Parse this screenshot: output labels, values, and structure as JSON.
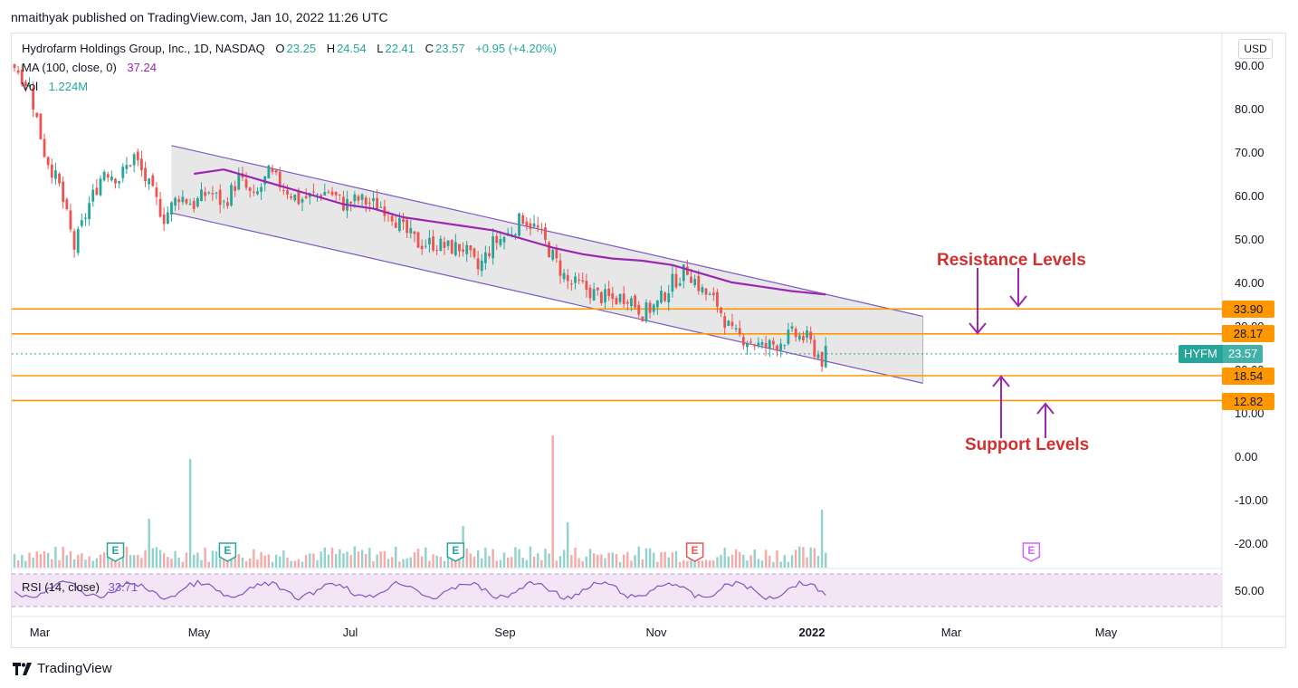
{
  "publisher": "nmaithyak published on TradingView.com, Jan 10, 2022 11:26 UTC",
  "legend": {
    "name": "Hydrofarm Holdings Group, Inc., 1D, NASDAQ",
    "o_label": "O",
    "o": "23.25",
    "h_label": "H",
    "h": "24.54",
    "l_label": "L",
    "l": "22.41",
    "c_label": "C",
    "c": "23.57",
    "change": "+0.95 (+4.20%)",
    "ma_label": "MA (100, close, 0)",
    "ma_value": "37.24",
    "vol_label": "Vol",
    "vol_value": "1.224M"
  },
  "currency": "USD",
  "symbol_tag": {
    "symbol": "HYFM",
    "price": "23.57"
  },
  "price_tags": [
    "33.90",
    "28.17",
    "18.54",
    "12.82"
  ],
  "annotations": {
    "resistance": "Resistance Levels",
    "support": "Support Levels"
  },
  "rsi": {
    "label": "RSI (14, close)",
    "value": "33.71",
    "axis_label": "50.00"
  },
  "earnings_marker": "E",
  "footer": "TradingView",
  "colors": {
    "up": "#26a69a",
    "down": "#ef5350",
    "ma": "#9c27b0",
    "level": "#ff9800",
    "channel_fill": "#e6e6e6",
    "channel_line": "#7e57c2",
    "arrow": "#9c27b0",
    "annotation": "#d32f2f",
    "rsi": "#7e57c2",
    "rsi_band": "#f3e5f5"
  },
  "chart_data": {
    "type": "candlestick",
    "title": "Hydrofarm Holdings Group, Inc., 1D, NASDAQ",
    "x_ticks": [
      "Mar",
      "May",
      "Jul",
      "Sep",
      "Nov",
      "2022",
      "Mar",
      "May"
    ],
    "y_ticks": [
      "90.00",
      "80.00",
      "70.00",
      "60.00",
      "50.00",
      "40.00",
      "30.00",
      "20.00",
      "10.00",
      "0.00",
      "-10.00",
      "-20.00"
    ],
    "ylim": [
      -24,
      96
    ],
    "horizontal_levels": [
      33.9,
      28.17,
      18.54,
      12.82
    ],
    "last_price": 23.57,
    "price_path": [
      [
        0,
        90
      ],
      [
        4,
        85
      ],
      [
        8,
        70
      ],
      [
        12,
        62
      ],
      [
        16,
        48
      ],
      [
        20,
        58
      ],
      [
        24,
        66
      ],
      [
        28,
        64
      ],
      [
        32,
        69
      ],
      [
        36,
        62
      ],
      [
        40,
        55
      ],
      [
        44,
        60
      ],
      [
        48,
        58
      ],
      [
        52,
        61
      ],
      [
        56,
        58
      ],
      [
        60,
        64
      ],
      [
        64,
        59
      ],
      [
        68,
        65
      ],
      [
        72,
        62
      ],
      [
        76,
        59
      ],
      [
        80,
        60
      ],
      [
        84,
        61
      ],
      [
        88,
        58
      ],
      [
        92,
        59
      ],
      [
        96,
        58
      ],
      [
        100,
        57
      ],
      [
        104,
        52
      ],
      [
        108,
        49
      ],
      [
        112,
        49
      ],
      [
        116,
        48
      ],
      [
        120,
        48
      ],
      [
        124,
        43
      ],
      [
        128,
        49
      ],
      [
        132,
        51
      ],
      [
        136,
        55
      ],
      [
        140,
        52
      ],
      [
        144,
        46
      ],
      [
        148,
        40
      ],
      [
        152,
        39
      ],
      [
        156,
        37
      ],
      [
        160,
        36
      ],
      [
        164,
        37
      ],
      [
        168,
        33
      ],
      [
        172,
        35
      ],
      [
        176,
        40
      ],
      [
        180,
        43
      ],
      [
        184,
        38
      ],
      [
        188,
        35
      ],
      [
        192,
        28
      ],
      [
        196,
        27
      ],
      [
        200,
        25
      ],
      [
        204,
        26
      ],
      [
        208,
        28
      ],
      [
        212,
        27
      ],
      [
        216,
        22
      ],
      [
        217,
        23.57
      ]
    ],
    "ma_path": [
      [
        48,
        65
      ],
      [
        56,
        66
      ],
      [
        64,
        64
      ],
      [
        72,
        62
      ],
      [
        80,
        60
      ],
      [
        88,
        58
      ],
      [
        96,
        57
      ],
      [
        104,
        55
      ],
      [
        112,
        54
      ],
      [
        120,
        53
      ],
      [
        128,
        52
      ],
      [
        136,
        50
      ],
      [
        144,
        48
      ],
      [
        152,
        46.5
      ],
      [
        160,
        45.5
      ],
      [
        168,
        45
      ],
      [
        176,
        44
      ],
      [
        184,
        42
      ],
      [
        192,
        40
      ],
      [
        200,
        39
      ],
      [
        208,
        38
      ],
      [
        217,
        37.24
      ]
    ],
    "channel": {
      "upper": [
        [
          42,
          71.5
        ],
        [
          243,
          32.2
        ]
      ],
      "lower": [
        [
          42,
          56
        ],
        [
          243,
          16.8
        ]
      ]
    },
    "earnings_x": [
      27,
      57,
      118,
      182,
      272
    ],
    "rsi_value": 33.71
  }
}
